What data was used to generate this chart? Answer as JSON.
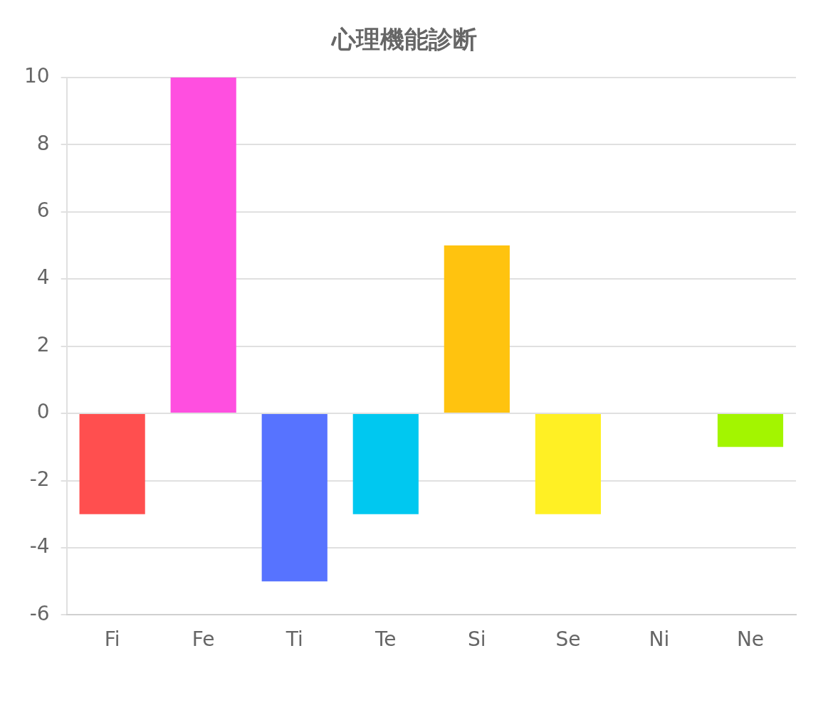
{
  "chart_data": {
    "type": "bar",
    "title": "心理機能診断",
    "categories": [
      "Fi",
      "Fe",
      "Ti",
      "Te",
      "Si",
      "Se",
      "Ni",
      "Ne"
    ],
    "values": [
      -3,
      10,
      -5,
      -3,
      5,
      -3,
      0,
      -1
    ],
    "colors": [
      "#ff4f4f",
      "#ff4fe0",
      "#5773ff",
      "#00c8f0",
      "#ffc30f",
      "#fff024",
      "#c0c0c0",
      "#a3f500"
    ],
    "ylim": [
      -6,
      10
    ],
    "yticks": [
      -6,
      -4,
      -2,
      0,
      2,
      4,
      6,
      8,
      10
    ],
    "grid": "y",
    "legend": false
  }
}
